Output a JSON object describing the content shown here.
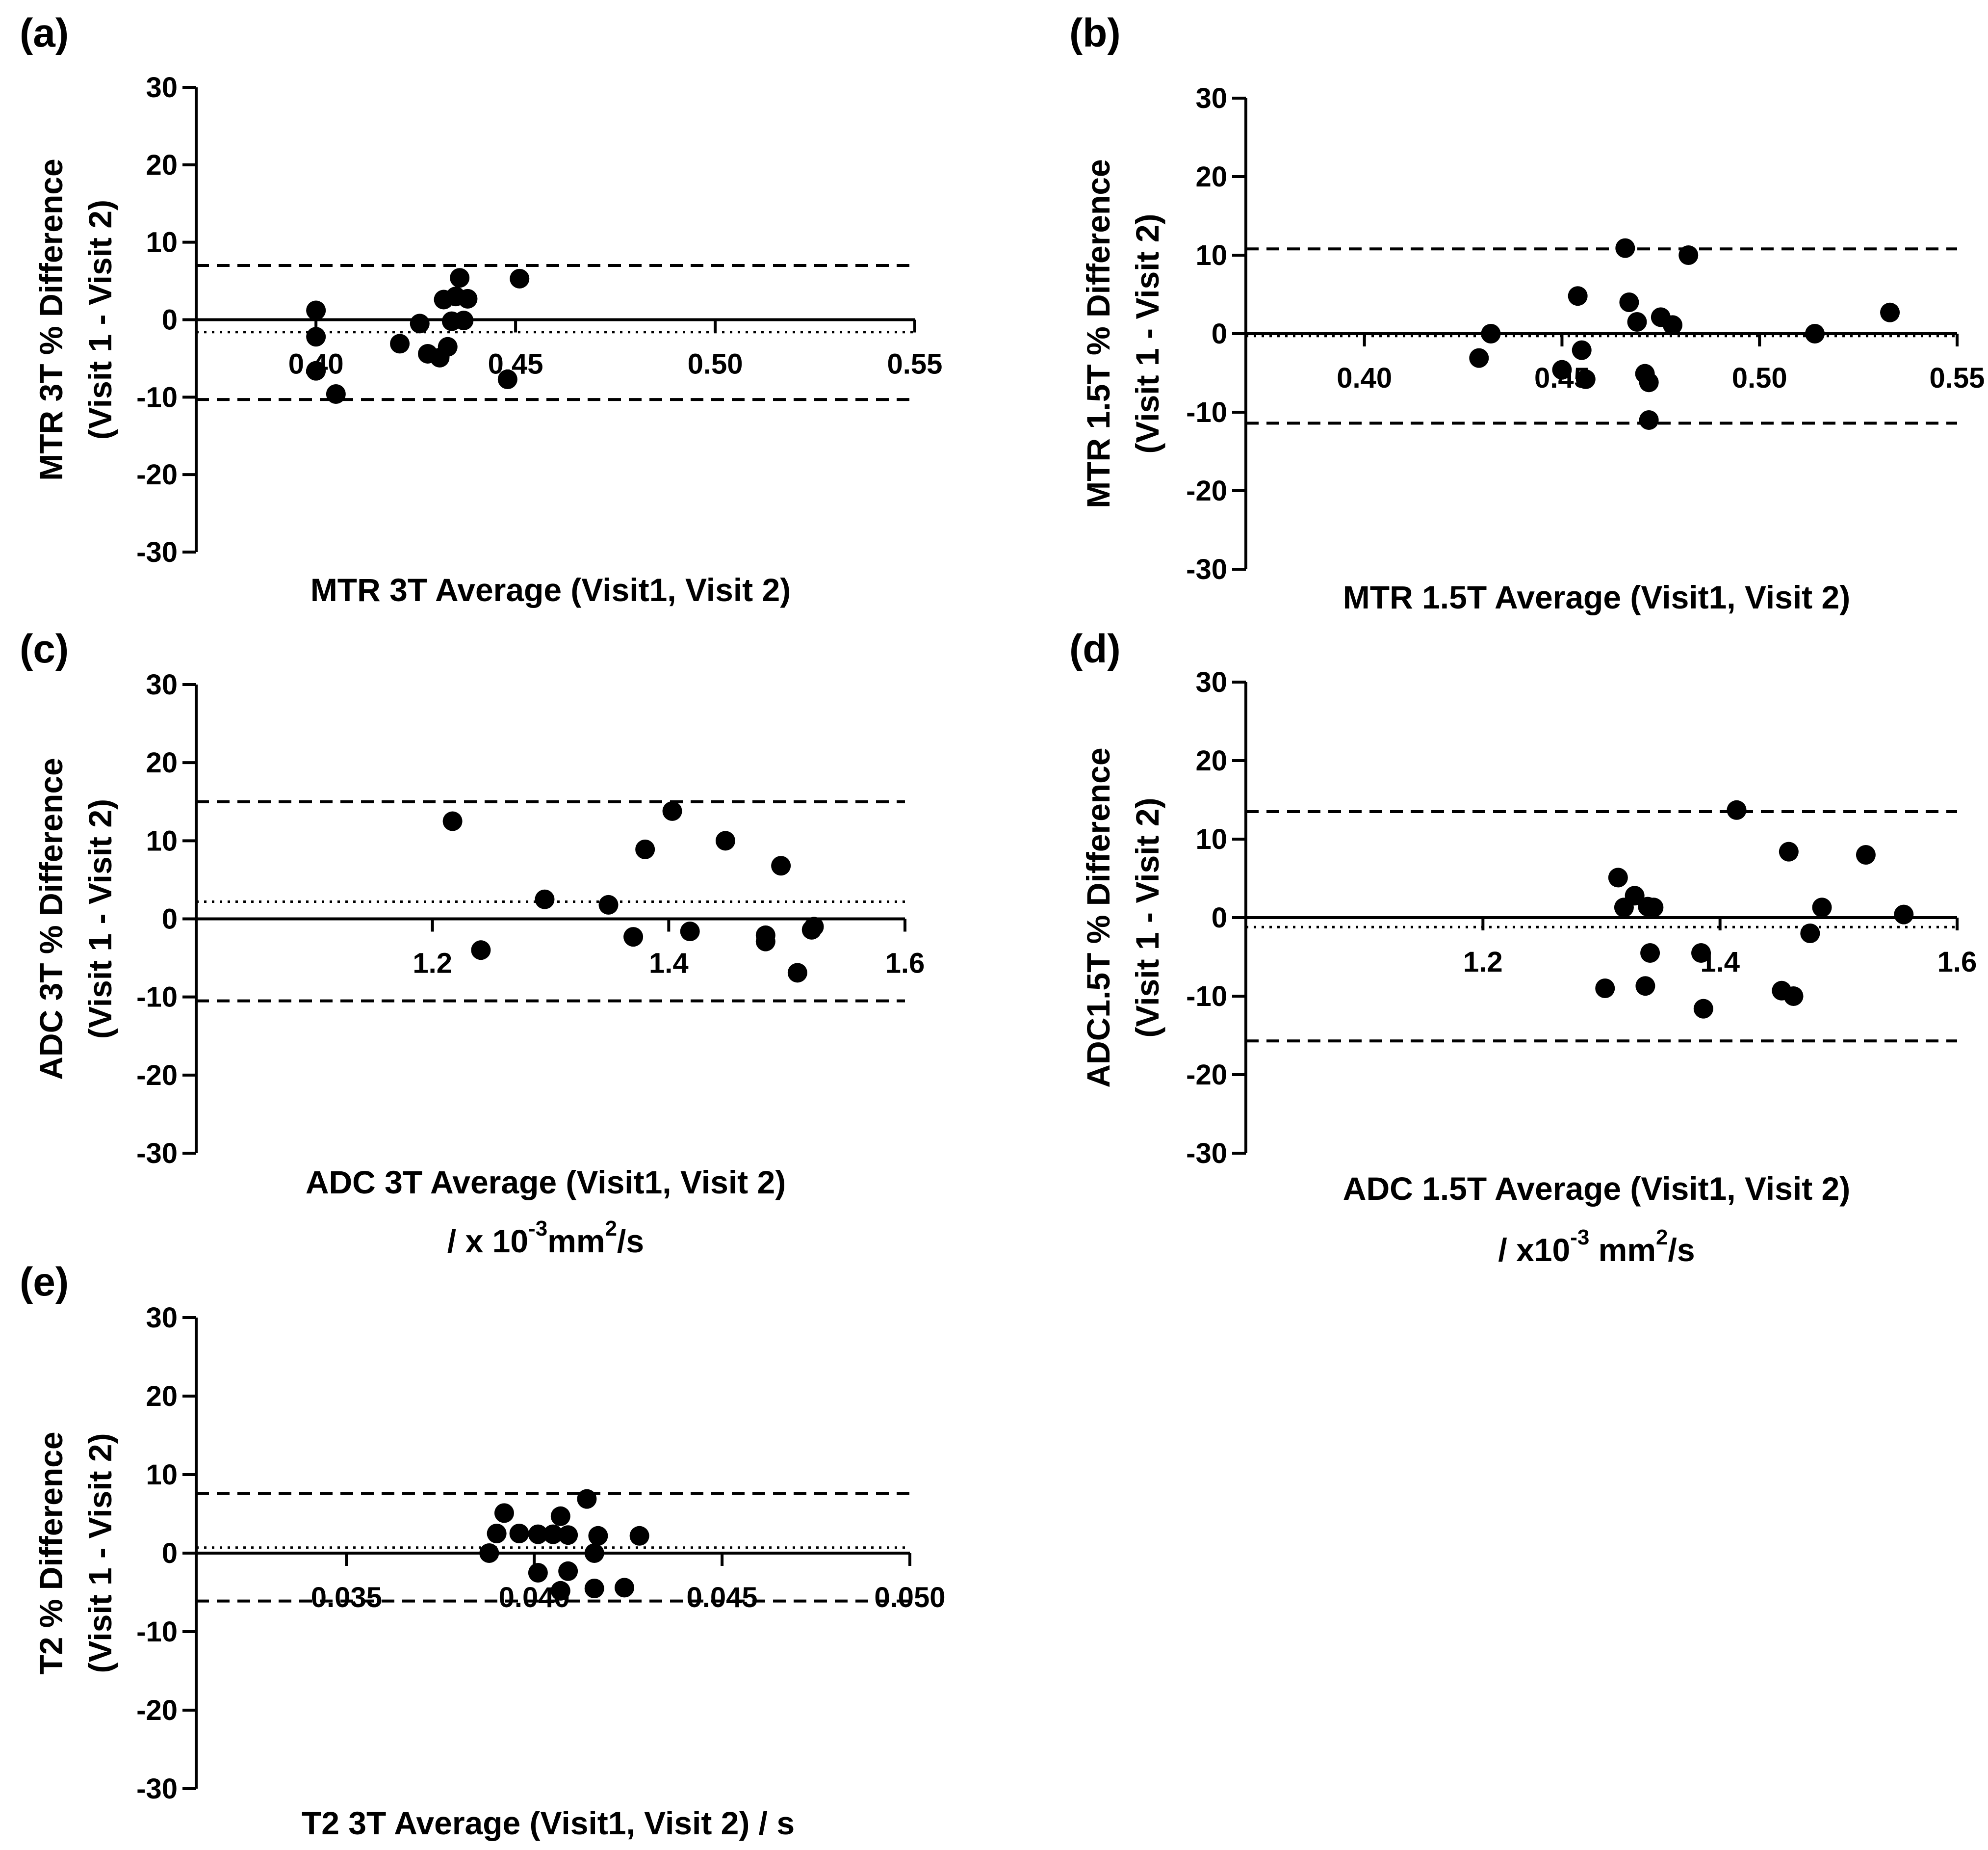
{
  "figure": {
    "background": "#ffffff",
    "ink": "#000000"
  },
  "chart_data": [
    {
      "id": "a",
      "type": "scatter",
      "panel_label": "(a)",
      "title": "",
      "ylabel_lines": [
        "MTR 3T % Difference",
        "(Visit 1 - Visit 2)"
      ],
      "xlabel_lines": [
        "MTR 3T Average (Visit1, Visit 2)"
      ],
      "xlim": [
        0.37,
        0.55
      ],
      "ylim": [
        -30,
        30
      ],
      "xticks": [
        0.4,
        0.45,
        0.5,
        0.55
      ],
      "xtick_labels": [
        "0.40",
        "0.45",
        "0.50",
        "0.55"
      ],
      "yticks": [
        30,
        20,
        10,
        0,
        -10,
        -20,
        -30
      ],
      "ytick_labels": [
        "30",
        "20",
        "10",
        "0",
        "-10",
        "-20",
        "-30"
      ],
      "mean_diff": -1.6,
      "upper_loa": 7.0,
      "lower_loa": -10.3,
      "x": [
        0.4,
        0.4,
        0.4,
        0.405,
        0.421,
        0.426,
        0.428,
        0.431,
        0.432,
        0.433,
        0.434,
        0.435,
        0.436,
        0.437,
        0.438,
        0.448,
        0.451
      ],
      "y": [
        1.2,
        -2.2,
        -6.6,
        -9.6,
        -3.1,
        -0.5,
        -4.4,
        -4.9,
        2.6,
        -3.5,
        -0.2,
        3.0,
        5.4,
        -0.1,
        2.7,
        -7.7,
        5.3
      ]
    },
    {
      "id": "b",
      "type": "scatter",
      "panel_label": "(b)",
      "title": "",
      "ylabel_lines": [
        "MTR 1.5T % Difference",
        "(Visit 1 - Visit 2)"
      ],
      "xlabel_lines": [
        "MTR 1.5T Average (Visit1, Visit 2)"
      ],
      "xlim": [
        0.37,
        0.55
      ],
      "ylim": [
        -30,
        30
      ],
      "xticks": [
        0.4,
        0.45,
        0.5,
        0.55
      ],
      "xtick_labels": [
        "0.40",
        "0.45",
        "0.50",
        "0.55"
      ],
      "yticks": [
        30,
        20,
        10,
        0,
        -10,
        -20,
        -30
      ],
      "ytick_labels": [
        "30",
        "20",
        "10",
        "0",
        "-10",
        "-20",
        "-30"
      ],
      "mean_diff": -0.3,
      "upper_loa": 10.8,
      "lower_loa": -11.4,
      "x": [
        0.429,
        0.432,
        0.45,
        0.454,
        0.455,
        0.456,
        0.466,
        0.467,
        0.469,
        0.471,
        0.472,
        0.472,
        0.475,
        0.478,
        0.482,
        0.514,
        0.533
      ],
      "y": [
        -3.1,
        0.0,
        -4.6,
        4.8,
        -2.1,
        -5.8,
        10.9,
        4.0,
        1.5,
        -5.1,
        -11.0,
        -6.2,
        2.1,
        1.1,
        10.0,
        0.0,
        2.7
      ]
    },
    {
      "id": "c",
      "type": "scatter",
      "panel_label": "(c)",
      "title": "",
      "ylabel_lines": [
        "ADC 3T % Difference",
        "(Visit 1 - Visit 2)"
      ],
      "xlabel_lines": [
        "ADC 3T Average (Visit1, Visit 2)",
        "/ x 10^-3 mm^2/s"
      ],
      "xlabel_parts": {
        "prefix": "/ x 10",
        "exp": "-3",
        "mid": "mm",
        "exp2": "2",
        "suffix": "/s"
      },
      "xlim": [
        1.0,
        1.6
      ],
      "ylim": [
        -30,
        30
      ],
      "xticks": [
        1.2,
        1.4,
        1.6
      ],
      "xtick_labels": [
        "1.2",
        "1.4",
        "1.6"
      ],
      "yticks": [
        30,
        20,
        10,
        0,
        -10,
        -20,
        -30
      ],
      "ytick_labels": [
        "30",
        "20",
        "10",
        "0",
        "-10",
        "-20",
        "-30"
      ],
      "mean_diff": 2.2,
      "upper_loa": 15.0,
      "lower_loa": -10.5,
      "x": [
        1.217,
        1.241,
        1.295,
        1.349,
        1.37,
        1.38,
        1.403,
        1.418,
        1.448,
        1.482,
        1.482,
        1.495,
        1.509,
        1.521,
        1.523
      ],
      "y": [
        12.5,
        -4.0,
        2.5,
        1.8,
        -2.3,
        8.9,
        13.8,
        -1.6,
        10.0,
        -2.1,
        -2.9,
        6.8,
        -6.9,
        -1.4,
        -1.0
      ]
    },
    {
      "id": "d",
      "type": "scatter",
      "panel_label": "(d)",
      "title": "",
      "ylabel_lines": [
        "ADC1.5T % Difference",
        "(Visit 1 - Visit 2)"
      ],
      "xlabel_lines": [
        "ADC 1.5T Average (Visit1, Visit 2)",
        "/ x10^-3 mm^2/s"
      ],
      "xlabel_parts": {
        "prefix": "/ x10",
        "exp": "-3",
        "mid": " mm",
        "exp2": "2",
        "suffix": "/s"
      },
      "xlim": [
        1.0,
        1.6
      ],
      "ylim": [
        -30,
        30
      ],
      "xticks": [
        1.2,
        1.4,
        1.6
      ],
      "xtick_labels": [
        "1.2",
        "1.4",
        "1.6"
      ],
      "yticks": [
        30,
        20,
        10,
        0,
        -10,
        -20,
        -30
      ],
      "ytick_labels": [
        "30",
        "20",
        "10",
        "0",
        "-10",
        "-20",
        "-30"
      ],
      "mean_diff": -1.2,
      "upper_loa": 13.5,
      "lower_loa": -15.7,
      "x": [
        1.303,
        1.314,
        1.319,
        1.328,
        1.337,
        1.339,
        1.341,
        1.344,
        1.384,
        1.386,
        1.414,
        1.452,
        1.458,
        1.462,
        1.476,
        1.486,
        1.523,
        1.555
      ],
      "y": [
        -9.0,
        5.1,
        1.3,
        2.8,
        -8.7,
        1.4,
        -4.5,
        1.3,
        -4.5,
        -11.6,
        13.7,
        -9.3,
        8.4,
        -10.0,
        -2.0,
        1.3,
        8.0,
        0.4
      ]
    },
    {
      "id": "e",
      "type": "scatter",
      "panel_label": "(e)",
      "title": "",
      "ylabel_lines": [
        "T2 % Difference",
        "(Visit 1 - Visit 2)"
      ],
      "xlabel_lines": [
        "T2 3T Average (Visit1, Visit 2) / s"
      ],
      "xlim": [
        0.031,
        0.05
      ],
      "ylim": [
        -30,
        30
      ],
      "xticks": [
        0.035,
        0.04,
        0.045,
        0.05
      ],
      "xtick_labels": [
        "0.035",
        "0.040",
        "0.045",
        "0.050"
      ],
      "yticks": [
        30,
        20,
        10,
        0,
        -10,
        -20,
        -30
      ],
      "ytick_labels": [
        "30",
        "20",
        "10",
        "0",
        "-10",
        "-20",
        "-30"
      ],
      "mean_diff": 0.7,
      "upper_loa": 7.6,
      "lower_loa": -6.1,
      "x": [
        0.0388,
        0.039,
        0.0392,
        0.0396,
        0.0401,
        0.0401,
        0.0405,
        0.0407,
        0.0407,
        0.0409,
        0.0409,
        0.0414,
        0.0416,
        0.0416,
        0.0417,
        0.0424,
        0.0428
      ],
      "y": [
        0.0,
        2.5,
        5.1,
        2.5,
        2.4,
        -2.5,
        2.4,
        4.7,
        -4.8,
        2.3,
        -2.3,
        6.9,
        0.0,
        -4.5,
        2.2,
        -4.4,
        2.2
      ]
    }
  ]
}
